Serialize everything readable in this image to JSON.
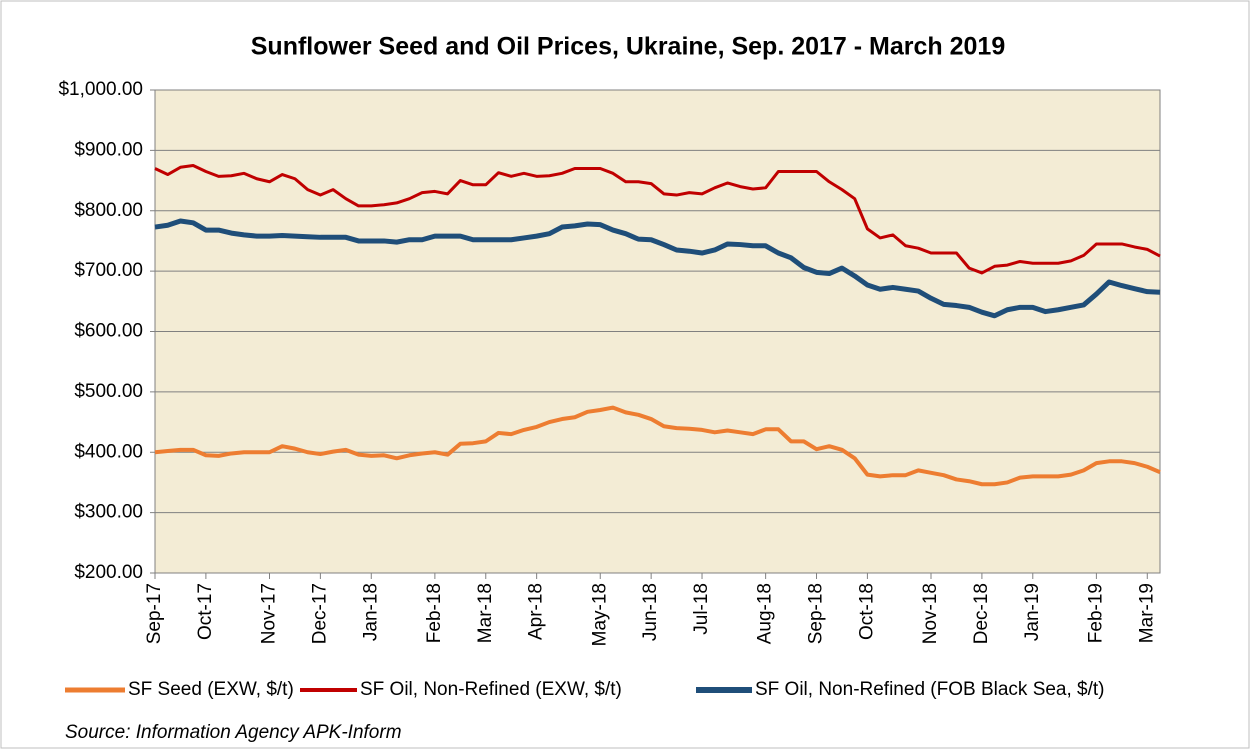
{
  "chart_data": {
    "type": "line",
    "title": "Sunflower Seed and Oil Prices, Ukraine, Sep. 2017 - March 2019",
    "source": "Source:  Information Agency  APK-Inform",
    "categories": [
      "Sep-17",
      null,
      null,
      null,
      "Oct-17",
      null,
      null,
      null,
      null,
      "Nov-17",
      null,
      null,
      null,
      "Dec-17",
      null,
      null,
      null,
      "Jan-18",
      null,
      null,
      null,
      null,
      "Feb-18",
      null,
      null,
      null,
      "Mar-18",
      null,
      null,
      null,
      "Apr-18",
      null,
      null,
      null,
      null,
      "May-18",
      null,
      null,
      null,
      "Jun-18",
      null,
      null,
      null,
      "Jul-18",
      null,
      null,
      null,
      null,
      "Aug-18",
      null,
      null,
      null,
      "Sep-18",
      null,
      null,
      null,
      "Oct-18",
      null,
      null,
      null,
      null,
      "Nov-18",
      null,
      null,
      null,
      "Dec-18",
      null,
      null,
      null,
      "Jan-19",
      null,
      null,
      null,
      null,
      "Feb-19",
      null,
      null,
      null,
      "Mar-19",
      null
    ],
    "series": [
      {
        "name": "SF Seed  (EXW, $/t)",
        "color": "#ED7D31",
        "width": 4,
        "values": [
          400,
          402,
          404,
          404,
          395,
          394,
          398,
          400,
          400,
          400,
          410,
          406,
          400,
          397,
          401,
          404,
          396,
          394,
          395,
          390,
          395,
          398,
          400,
          396,
          414,
          415,
          418,
          432,
          430,
          437,
          442,
          450,
          455,
          458,
          467,
          470,
          474,
          466,
          462,
          455,
          443,
          440,
          439,
          437,
          433,
          436,
          433,
          430,
          438,
          438,
          418,
          418,
          405,
          410,
          404,
          390,
          363,
          360,
          362,
          362,
          370,
          366,
          362,
          355,
          352,
          347,
          347,
          350,
          358,
          360,
          360,
          360,
          363,
          370,
          382,
          385,
          385,
          382,
          376,
          367
        ]
      },
      {
        "name": "SF Oil, Non-Refined (EXW, $/t)",
        "color": "#C00000",
        "width": 3,
        "values": [
          870,
          860,
          872,
          875,
          865,
          857,
          858,
          862,
          853,
          848,
          860,
          853,
          835,
          826,
          835,
          820,
          808,
          808,
          810,
          813,
          820,
          830,
          832,
          828,
          850,
          843,
          843,
          863,
          857,
          862,
          857,
          858,
          862,
          870,
          870,
          870,
          862,
          848,
          848,
          845,
          828,
          826,
          830,
          828,
          838,
          846,
          840,
          836,
          838,
          865,
          865,
          865,
          865,
          848,
          835,
          820,
          770,
          755,
          760,
          742,
          738,
          730,
          730,
          730,
          705,
          697,
          708,
          710,
          716,
          713,
          713,
          713,
          717,
          726,
          745,
          745,
          745,
          740,
          736,
          725
        ]
      },
      {
        "name": "SF Oil, Non-Refined (FOB Black Sea, $/t)",
        "color": "#1F4E79",
        "width": 5,
        "values": [
          773,
          776,
          783,
          780,
          768,
          768,
          763,
          760,
          758,
          758,
          759,
          758,
          757,
          756,
          756,
          756,
          750,
          750,
          750,
          748,
          752,
          752,
          758,
          758,
          758,
          752,
          752,
          752,
          752,
          755,
          758,
          762,
          773,
          775,
          778,
          777,
          768,
          762,
          753,
          752,
          744,
          735,
          733,
          730,
          735,
          745,
          744,
          742,
          742,
          730,
          722,
          706,
          698,
          696,
          705,
          692,
          677,
          670,
          673,
          670,
          667,
          655,
          645,
          643,
          640,
          632,
          626,
          636,
          640,
          640,
          633,
          636,
          640,
          644,
          662,
          682,
          676,
          671,
          666,
          665
        ]
      }
    ],
    "ylim": [
      200,
      1000
    ],
    "yticks": [
      {
        "value": 200,
        "label": "$200.00"
      },
      {
        "value": 300,
        "label": "$300.00"
      },
      {
        "value": 400,
        "label": "$400.00"
      },
      {
        "value": 500,
        "label": "$500.00"
      },
      {
        "value": 600,
        "label": "$600.00"
      },
      {
        "value": 700,
        "label": "$700.00"
      },
      {
        "value": 800,
        "label": "$800.00"
      },
      {
        "value": 900,
        "label": "$900.00"
      },
      {
        "value": 1000,
        "label": "$1,000.00"
      }
    ],
    "grid": true,
    "plot_background": "#F3ECD5"
  }
}
